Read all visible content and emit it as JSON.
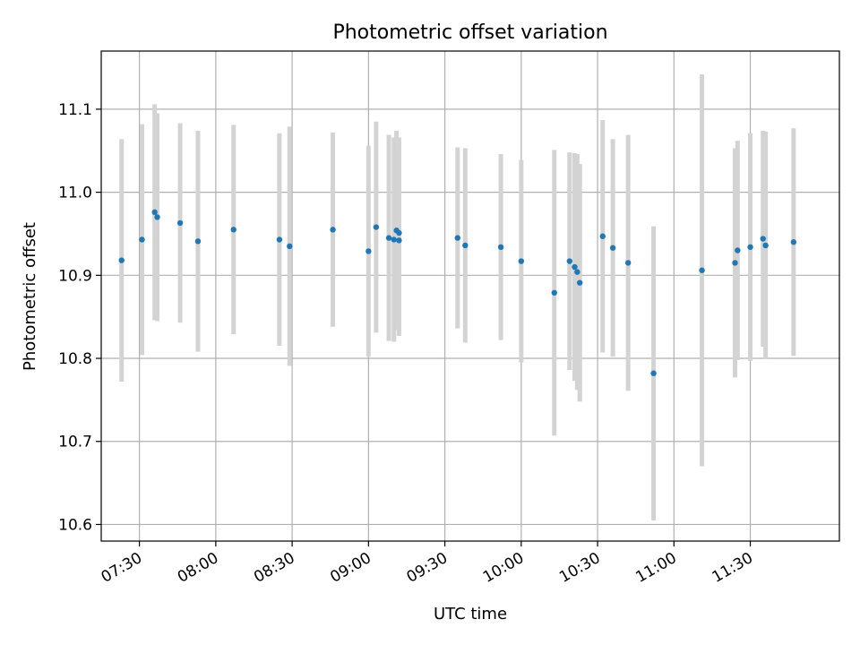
{
  "chart_data": {
    "type": "scatter",
    "title": "Photometric offset variation",
    "xlabel": "UTC time",
    "ylabel": "Photometric offset",
    "x_ticks": [
      "07:30",
      "08:00",
      "08:30",
      "09:00",
      "09:30",
      "10:00",
      "10:30",
      "11:00",
      "11:30"
    ],
    "y_ticks": [
      "10.6",
      "10.7",
      "10.8",
      "10.9",
      "11.0",
      "11.1"
    ],
    "xlim": [
      "07:15",
      "12:05"
    ],
    "ylim": [
      10.58,
      11.17
    ],
    "grid": true,
    "colors": {
      "point": "#1f77b4",
      "error_bar": "#d3d3d3",
      "grid": "#b0b0b0"
    },
    "points": [
      {
        "x": "07:23",
        "y": 10.918,
        "err": 0.146
      },
      {
        "x": "07:31",
        "y": 10.943,
        "err": 0.139
      },
      {
        "x": "07:36",
        "y": 10.976,
        "err": 0.13
      },
      {
        "x": "07:37",
        "y": 10.97,
        "err": 0.125
      },
      {
        "x": "07:46",
        "y": 10.963,
        "err": 0.12
      },
      {
        "x": "07:53",
        "y": 10.941,
        "err": 0.133
      },
      {
        "x": "08:07",
        "y": 10.955,
        "err": 0.126
      },
      {
        "x": "08:25",
        "y": 10.943,
        "err": 0.128
      },
      {
        "x": "08:29",
        "y": 10.935,
        "err": 0.144
      },
      {
        "x": "08:46",
        "y": 10.955,
        "err": 0.117
      },
      {
        "x": "09:00",
        "y": 10.929,
        "err": 0.127
      },
      {
        "x": "09:03",
        "y": 10.958,
        "err": 0.127
      },
      {
        "x": "09:08",
        "y": 10.945,
        "err": 0.124
      },
      {
        "x": "09:10",
        "y": 10.943,
        "err": 0.123
      },
      {
        "x": "09:11",
        "y": 10.954,
        "err": 0.12
      },
      {
        "x": "09:12",
        "y": 10.951,
        "err": 0.115
      },
      {
        "x": "09:12",
        "y": 10.942,
        "err": 0.115
      },
      {
        "x": "09:35",
        "y": 10.945,
        "err": 0.109
      },
      {
        "x": "09:38",
        "y": 10.936,
        "err": 0.117
      },
      {
        "x": "09:52",
        "y": 10.934,
        "err": 0.112
      },
      {
        "x": "10:00",
        "y": 10.917,
        "err": 0.122
      },
      {
        "x": "10:13",
        "y": 10.879,
        "err": 0.172
      },
      {
        "x": "10:19",
        "y": 10.917,
        "err": 0.131
      },
      {
        "x": "10:21",
        "y": 10.91,
        "err": 0.137
      },
      {
        "x": "10:22",
        "y": 10.904,
        "err": 0.142
      },
      {
        "x": "10:23",
        "y": 10.891,
        "err": 0.143
      },
      {
        "x": "10:32",
        "y": 10.947,
        "err": 0.14
      },
      {
        "x": "10:36",
        "y": 10.933,
        "err": 0.131
      },
      {
        "x": "10:42",
        "y": 10.915,
        "err": 0.154
      },
      {
        "x": "10:52",
        "y": 10.782,
        "err": 0.177
      },
      {
        "x": "11:11",
        "y": 10.906,
        "err": 0.236
      },
      {
        "x": "11:24",
        "y": 10.915,
        "err": 0.138
      },
      {
        "x": "11:25",
        "y": 10.93,
        "err": 0.132
      },
      {
        "x": "11:30",
        "y": 10.934,
        "err": 0.137
      },
      {
        "x": "11:35",
        "y": 10.944,
        "err": 0.13
      },
      {
        "x": "11:36",
        "y": 10.936,
        "err": 0.137
      },
      {
        "x": "11:47",
        "y": 10.94,
        "err": 0.137
      }
    ]
  }
}
